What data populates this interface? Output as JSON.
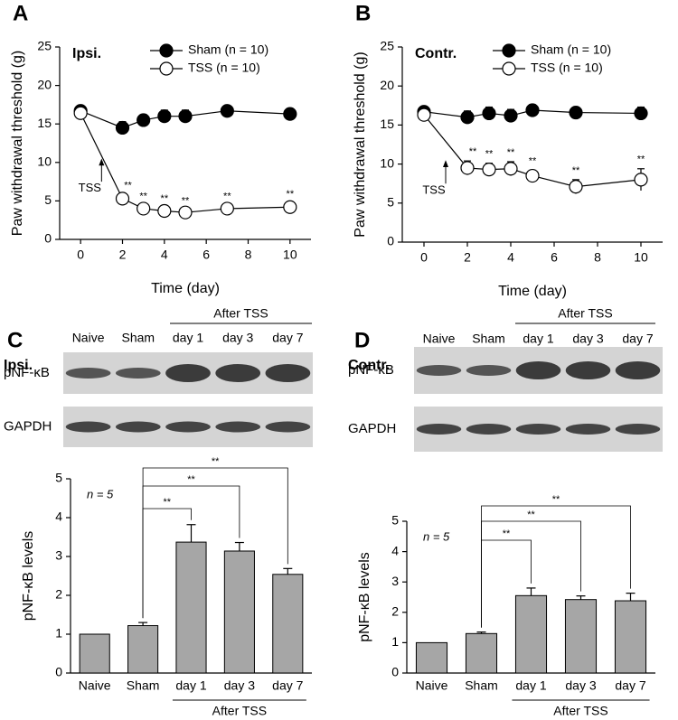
{
  "chart_data": [
    {
      "type": "line",
      "panel": "A",
      "region": "Ipsi.",
      "xlabel": "Time (day)",
      "ylabel": "Paw withdrawal threshold (g)",
      "x": [
        0,
        2,
        3,
        4,
        5,
        7,
        10
      ],
      "xlim": [
        -1,
        11
      ],
      "xticks": [
        0,
        2,
        4,
        6,
        8,
        10
      ],
      "ylim": [
        0,
        25
      ],
      "yticks": [
        0,
        5,
        10,
        15,
        20,
        25
      ],
      "arrow_label": "TSS",
      "series": [
        {
          "name": "Sham (n = 10)",
          "color": "#000000",
          "marker_fill": "#000000",
          "values": [
            16.7,
            14.5,
            15.5,
            16.0,
            16.0,
            16.7,
            16.3
          ],
          "errors": [
            0.4,
            0.8,
            0.7,
            0.8,
            0.8,
            0.4,
            0.7
          ]
        },
        {
          "name": "TSS (n = 10)",
          "color": "#000000",
          "marker_fill": "#ffffff",
          "values": [
            16.4,
            5.3,
            4.0,
            3.7,
            3.5,
            4.0,
            4.2
          ],
          "errors": [
            0.3,
            0.5,
            0.4,
            0.4,
            0.3,
            0.4,
            0.5
          ],
          "annotations": [
            null,
            "**",
            "**",
            "**",
            "**",
            "**",
            "**"
          ]
        }
      ]
    },
    {
      "type": "line",
      "panel": "B",
      "region": "Contr.",
      "xlabel": "Time (day)",
      "ylabel": "Paw withdrawal threshold (g)",
      "x": [
        0,
        2,
        3,
        4,
        5,
        7,
        10
      ],
      "xlim": [
        -1,
        11
      ],
      "xticks": [
        0,
        2,
        4,
        6,
        8,
        10
      ],
      "ylim": [
        0,
        25
      ],
      "yticks": [
        0,
        5,
        10,
        15,
        20,
        25
      ],
      "arrow_label": "TSS",
      "series": [
        {
          "name": "Sham (n = 10)",
          "color": "#000000",
          "marker_fill": "#000000",
          "values": [
            16.7,
            16.0,
            16.5,
            16.2,
            16.9,
            16.6,
            16.5
          ],
          "errors": [
            0.4,
            0.8,
            0.8,
            0.8,
            0.7,
            0.5,
            0.8
          ]
        },
        {
          "name": "TSS (n = 10)",
          "color": "#000000",
          "marker_fill": "#ffffff",
          "values": [
            16.3,
            9.5,
            9.3,
            9.4,
            8.5,
            7.1,
            8.0
          ],
          "errors": [
            0.3,
            0.9,
            0.8,
            0.9,
            0.7,
            0.9,
            1.4
          ],
          "annotations": [
            null,
            "**",
            "**",
            "**",
            "**",
            "**",
            "**"
          ]
        }
      ]
    },
    {
      "type": "bar",
      "ylabel": "pNF-κB levels",
      "note": "n = 5",
      "categories": [
        "Naive",
        "Sham",
        "day 1",
        "day 3",
        "day 7"
      ],
      "values": [
        1.0,
        1.22,
        3.37,
        3.14,
        2.54
      ],
      "errors": [
        0,
        0.08,
        0.45,
        0.22,
        0.15
      ],
      "color": "#a6a6a6",
      "ylim": [
        0,
        5
      ],
      "yticks": [
        0,
        1,
        2,
        3,
        4,
        5
      ],
      "group_label": "After TSS",
      "significance": [
        "**",
        "**",
        "**"
      ]
    },
    {
      "type": "bar",
      "ylabel": "pNF-κB levels",
      "note": "n = 5",
      "categories": [
        "Naive",
        "Sham",
        "day 1",
        "day 3",
        "day 7"
      ],
      "values": [
        1.0,
        1.3,
        2.55,
        2.42,
        2.38
      ],
      "errors": [
        0,
        0.05,
        0.25,
        0.12,
        0.25
      ],
      "color": "#a6a6a6",
      "ylim": [
        0,
        5
      ],
      "yticks": [
        0,
        1,
        2,
        3,
        4,
        5
      ],
      "group_label": "After TSS",
      "significance": [
        "**",
        "**",
        "**"
      ]
    }
  ],
  "blots": [
    {
      "panel": "C",
      "region": "Ipsi.",
      "lanes": [
        "Naive",
        "Sham",
        "day 1",
        "day 3",
        "day 7"
      ],
      "group": "After TSS",
      "rows": [
        "pNF-κB",
        "GAPDH"
      ]
    },
    {
      "panel": "D",
      "region": "Contr.",
      "lanes": [
        "Naive",
        "Sham",
        "day 1",
        "day 3",
        "day 7"
      ],
      "group": "After TSS",
      "rows": [
        "pNF-κB",
        "GAPDH"
      ]
    }
  ]
}
